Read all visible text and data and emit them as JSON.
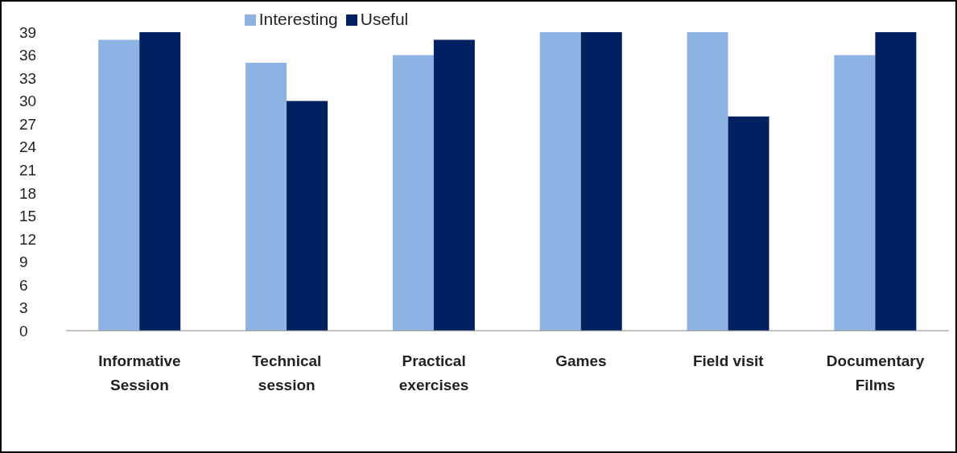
{
  "chart_data": {
    "type": "bar",
    "categories": [
      "Informative Session",
      "Technical session",
      "Practical exercises",
      "Games",
      "Field visit",
      "Documentary Films"
    ],
    "series": [
      {
        "name": "Interesting",
        "color": "#8db3e2",
        "values": [
          38,
          35,
          36,
          39,
          39,
          36
        ]
      },
      {
        "name": "Useful",
        "color": "#002060",
        "values": [
          39,
          30,
          38,
          39,
          28,
          39
        ]
      }
    ],
    "ylim": [
      0,
      39
    ],
    "yticks": [
      0,
      3,
      6,
      9,
      12,
      15,
      18,
      21,
      24,
      27,
      30,
      33,
      36,
      39
    ],
    "grid": false,
    "legend": "top"
  }
}
